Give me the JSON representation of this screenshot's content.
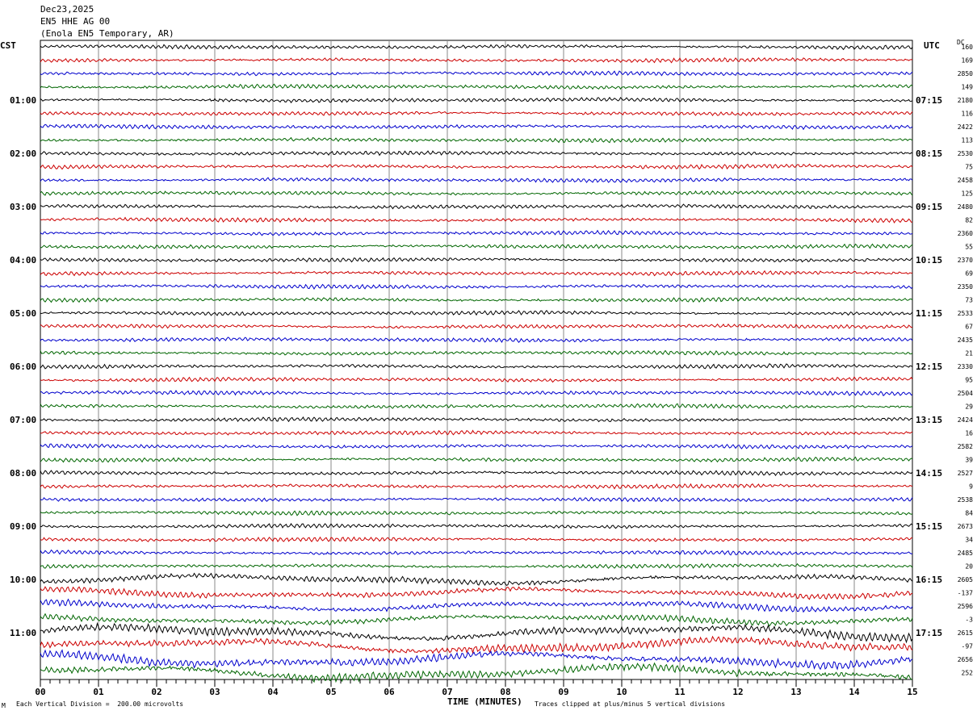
{
  "header": {
    "date": "Dec23,2025",
    "station": "EN5 HHE AG 00",
    "location": "(Enola EN5 Temporary, AR)"
  },
  "left_label": "CST",
  "right_label": "UTC",
  "dc_label": "DC",
  "footer": {
    "mark": "M",
    "scale_note": "Each Vertical Division =  200.00 microvolts",
    "clip_note": "Traces clipped at plus/minus 5 vertical divisions"
  },
  "chart_data": {
    "type": "line",
    "xlabel": "TIME (MINUTES)",
    "x_ticks": [
      "00",
      "01",
      "02",
      "03",
      "04",
      "05",
      "06",
      "07",
      "08",
      "09",
      "10",
      "11",
      "12",
      "13",
      "14",
      "15"
    ],
    "xlim": [
      0,
      15
    ],
    "grid": true,
    "trace_count": 48,
    "trace_colors": [
      "#000000",
      "#cc0000",
      "#0000cc",
      "#006600"
    ],
    "cst_labels": [
      {
        "trace": 4,
        "text": "01:00"
      },
      {
        "trace": 8,
        "text": "02:00"
      },
      {
        "trace": 12,
        "text": "03:00"
      },
      {
        "trace": 16,
        "text": "04:00"
      },
      {
        "trace": 20,
        "text": "05:00"
      },
      {
        "trace": 24,
        "text": "06:00"
      },
      {
        "trace": 28,
        "text": "07:00"
      },
      {
        "trace": 32,
        "text": "08:00"
      },
      {
        "trace": 36,
        "text": "09:00"
      },
      {
        "trace": 40,
        "text": "10:00"
      },
      {
        "trace": 44,
        "text": "11:00"
      }
    ],
    "utc_labels": [
      {
        "trace": 4,
        "text": "07:15"
      },
      {
        "trace": 8,
        "text": "08:15"
      },
      {
        "trace": 12,
        "text": "09:15"
      },
      {
        "trace": 16,
        "text": "10:15"
      },
      {
        "trace": 20,
        "text": "11:15"
      },
      {
        "trace": 24,
        "text": "12:15"
      },
      {
        "trace": 28,
        "text": "13:15"
      },
      {
        "trace": 32,
        "text": "14:15"
      },
      {
        "trace": 36,
        "text": "15:15"
      },
      {
        "trace": 40,
        "text": "16:15"
      },
      {
        "trace": 44,
        "text": "17:15"
      }
    ],
    "dc_values": [
      "160",
      "169",
      "2850",
      "149",
      "2180",
      "116",
      "2422",
      "113",
      "2530",
      "75",
      "2458",
      "125",
      "2480",
      "82",
      "2360",
      "55",
      "2370",
      "69",
      "2350",
      "73",
      "2533",
      "67",
      "2435",
      "21",
      "2330",
      "95",
      "2504",
      "29",
      "2424",
      "16",
      "2582",
      "39",
      "2527",
      "9",
      "2538",
      "84",
      "2673",
      "34",
      "2485",
      "20",
      "2605",
      "-137",
      "2596",
      "-3",
      "2615",
      "-97",
      "2656",
      "252"
    ],
    "amplitude_rows": [
      {
        "from": 0,
        "to": 39,
        "level": 1
      },
      {
        "from": 40,
        "to": 43,
        "level": 2
      },
      {
        "from": 44,
        "to": 47,
        "level": 3
      }
    ]
  }
}
